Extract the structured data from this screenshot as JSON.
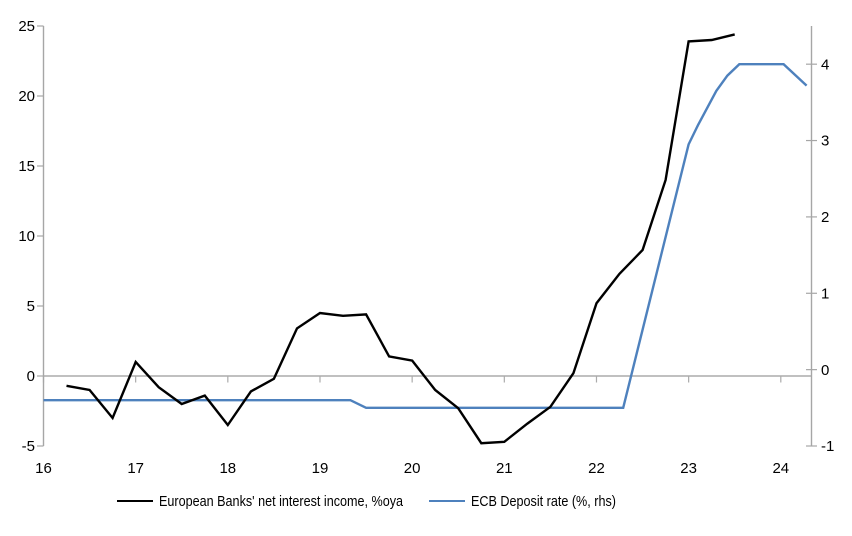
{
  "chart_data": {
    "type": "line",
    "title": "",
    "x_axis": {
      "range": [
        16,
        24.333
      ],
      "ticks": [
        16,
        17,
        18,
        19,
        20,
        21,
        22,
        23,
        24
      ],
      "labels": [
        "16",
        "17",
        "18",
        "19",
        "20",
        "21",
        "22",
        "23",
        "24"
      ]
    },
    "left_axis": {
      "range": [
        -5,
        25
      ],
      "ticks": [
        -5,
        0,
        5,
        10,
        15,
        20,
        25
      ],
      "labels": [
        "-5",
        "0",
        "5",
        "10",
        "15",
        "20",
        "25"
      ]
    },
    "right_axis": {
      "range": [
        -1,
        4.5
      ],
      "ticks": [
        -1,
        0,
        1,
        2,
        3,
        4
      ],
      "labels": [
        "-1",
        "0",
        "1",
        "2",
        "3",
        "4"
      ]
    },
    "grid": "zero-line-only",
    "legend_position": "bottom",
    "series": [
      {
        "name": "European Banks' net interest income, %oya",
        "axis": "left",
        "color": "#000000",
        "x": [
          16.25,
          16.5,
          16.75,
          17.0,
          17.25,
          17.5,
          17.75,
          18.0,
          18.25,
          18.5,
          18.75,
          19.0,
          19.25,
          19.5,
          19.75,
          20.0,
          20.25,
          20.5,
          20.75,
          21.0,
          21.25,
          21.5,
          21.75,
          22.0,
          22.25,
          22.5,
          22.75,
          23.0,
          23.25,
          23.5
        ],
        "values": [
          -0.7,
          -1.0,
          -3.0,
          1.0,
          -0.8,
          -2.0,
          -1.4,
          -3.5,
          -1.1,
          -0.2,
          3.4,
          4.5,
          4.3,
          4.4,
          1.4,
          1.1,
          -1.0,
          -2.3,
          -4.8,
          -4.7,
          -3.4,
          -2.2,
          0.2,
          5.2,
          7.3,
          9.0,
          14.0,
          23.9,
          24.0,
          24.4
        ]
      },
      {
        "name": "ECB Deposit rate (%, rhs)",
        "axis": "right",
        "color": "#4E81BD",
        "x": [
          16.0,
          19.33,
          19.5,
          22.29,
          23.0,
          23.1,
          23.3,
          23.42,
          23.55,
          24.03,
          24.28
        ],
        "values": [
          -0.4,
          -0.4,
          -0.5,
          -0.5,
          2.95,
          3.2,
          3.65,
          3.85,
          4.0,
          4.0,
          3.72
        ]
      }
    ]
  },
  "legend": {
    "items": [
      {
        "label": "European Banks' net interest income, %oya",
        "color": "#000000"
      },
      {
        "label": "ECB Deposit rate (%, rhs)",
        "color": "#4E81BD"
      }
    ]
  },
  "colors": {
    "background": "#FFFFFF",
    "axis_line": "#A6A6A6",
    "zero_line": "#ABABAB",
    "tick_label": "#000000",
    "series_nii": "#000000",
    "series_deposit": "#4E81BD"
  }
}
